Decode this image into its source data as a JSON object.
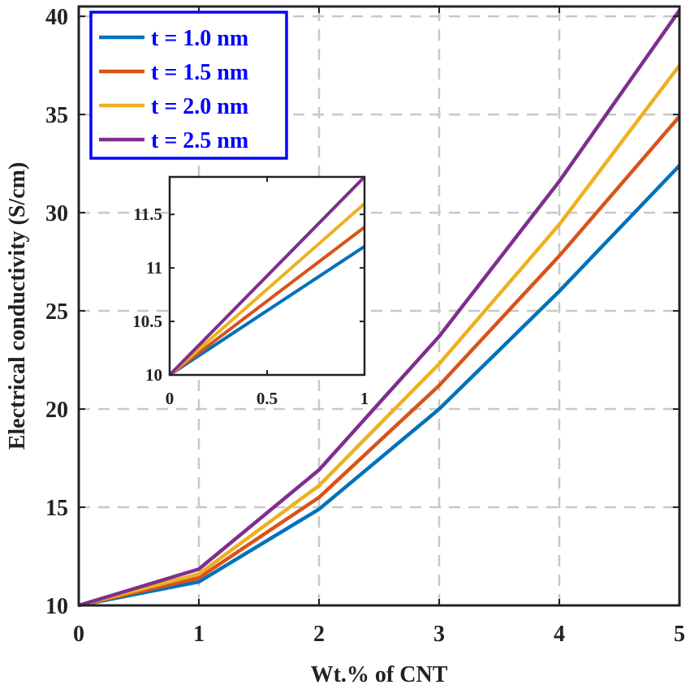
{
  "chart_data": [
    {
      "type": "line",
      "title": "",
      "xlabel": "Wt.% of CNT",
      "ylabel": "Electrical conductivity (S/cm)",
      "xlim": [
        0,
        5
      ],
      "ylim": [
        10,
        40.5
      ],
      "xticks": [
        0,
        1,
        2,
        3,
        4,
        5
      ],
      "yticks": [
        10,
        15,
        20,
        25,
        30,
        35,
        40
      ],
      "xtick_labels": [
        "0",
        "1",
        "2",
        "3",
        "4",
        "5"
      ],
      "ytick_labels": [
        "10",
        "15",
        "20",
        "25",
        "30",
        "35",
        "40"
      ],
      "grid": true,
      "legend_position": "top-left",
      "x": [
        0,
        1,
        2,
        3,
        4,
        5
      ],
      "series": [
        {
          "name": "t = 1.0 nm",
          "color": "#0072bd",
          "values": [
            10.0,
            11.2,
            14.9,
            20.0,
            26.0,
            32.4
          ]
        },
        {
          "name": "t = 1.5 nm",
          "color": "#d95319",
          "values": [
            10.0,
            11.4,
            15.5,
            21.2,
            27.8,
            34.9
          ]
        },
        {
          "name": "t = 2.0 nm",
          "color": "#edb120",
          "values": [
            10.0,
            11.6,
            16.1,
            22.3,
            29.4,
            37.5
          ]
        },
        {
          "name": "t = 2.5 nm",
          "color": "#7e2f8e",
          "values": [
            10.0,
            11.85,
            16.9,
            23.7,
            31.6,
            40.3
          ]
        }
      ]
    },
    {
      "type": "line",
      "title": "",
      "xlabel": "",
      "ylabel": "",
      "xlim": [
        0,
        1
      ],
      "ylim": [
        10,
        11.85
      ],
      "xticks": [
        0,
        0.5,
        1
      ],
      "yticks": [
        10,
        10.5,
        11,
        11.5
      ],
      "xtick_labels": [
        "0",
        "0.5",
        "1"
      ],
      "ytick_labels": [
        "10",
        "10.5",
        "11",
        "11.5"
      ],
      "grid": false,
      "legend_position": "none",
      "x": [
        0,
        1
      ],
      "series": [
        {
          "name": "t = 1.0 nm",
          "color": "#0072bd",
          "values": [
            10.0,
            11.2
          ]
        },
        {
          "name": "t = 1.5 nm",
          "color": "#d95319",
          "values": [
            10.0,
            11.38
          ]
        },
        {
          "name": "t = 2.0 nm",
          "color": "#edb120",
          "values": [
            10.0,
            11.6
          ]
        },
        {
          "name": "t = 2.5 nm",
          "color": "#7e2f8e",
          "values": [
            10.0,
            11.85
          ]
        }
      ]
    }
  ]
}
